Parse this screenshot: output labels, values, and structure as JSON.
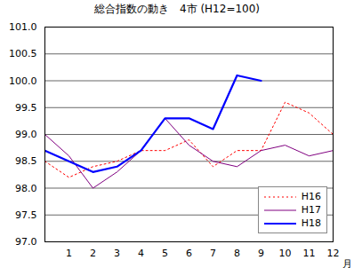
{
  "chart_data": {
    "type": "line",
    "title": "総合指数の動き　4市 (H12=100)",
    "x_label": "月",
    "categories": [
      null,
      "1",
      "2",
      "3",
      "4",
      "5",
      "6",
      "7",
      "8",
      "9",
      "10",
      "11",
      "12"
    ],
    "series": [
      {
        "name": "H16",
        "color": "#ff0000",
        "line_style": "dotted",
        "values": [
          98.5,
          98.2,
          98.4,
          98.5,
          98.7,
          98.7,
          98.9,
          98.4,
          98.7,
          98.7,
          99.6,
          99.4,
          99.0
        ]
      },
      {
        "name": "H17",
        "color": "#800080",
        "line_style": "solid",
        "values": [
          99.0,
          98.6,
          98.0,
          98.3,
          98.7,
          99.3,
          98.8,
          98.5,
          98.4,
          98.7,
          98.8,
          98.6,
          98.7
        ]
      },
      {
        "name": "H18",
        "color": "#0000ff",
        "line_style": "solid",
        "values": [
          98.7,
          98.5,
          98.3,
          98.4,
          98.7,
          99.3,
          99.3,
          99.1,
          100.1,
          100.0,
          null,
          null,
          null
        ]
      }
    ],
    "ylim": [
      97,
      101
    ],
    "yticks": [
      {
        "value": 97,
        "label": "97.0"
      },
      97.5,
      {
        "value": 98,
        "label": "98.0"
      },
      98.5,
      {
        "value": 99,
        "label": "99.0"
      },
      99.5,
      {
        "value": 100,
        "label": "100.0"
      },
      100.5,
      {
        "value": 101,
        "label": "101.0"
      }
    ],
    "grid": true,
    "legend": "lower right"
  }
}
